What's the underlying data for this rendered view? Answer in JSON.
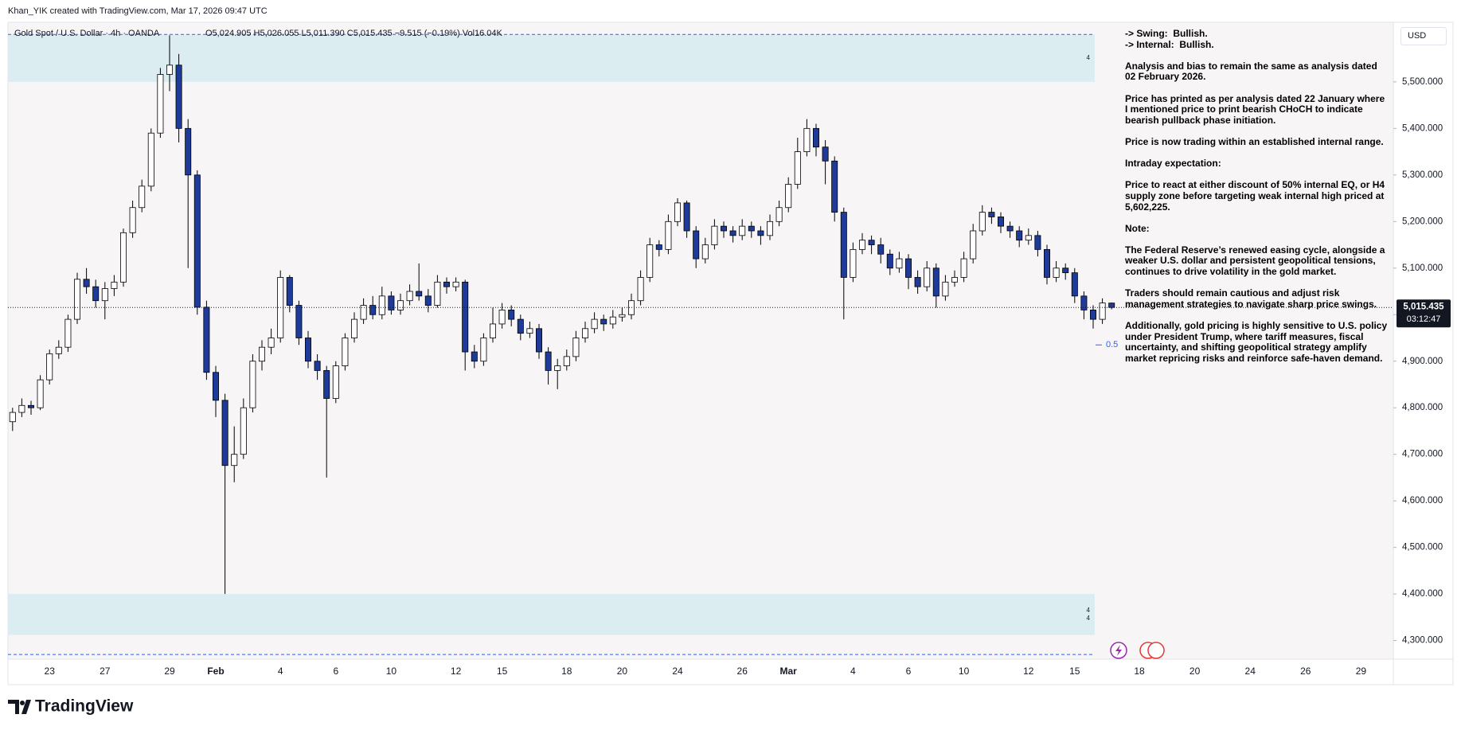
{
  "header": "Khan_YIK created with TradingView.com, Mar 17, 2026 09:47 UTC",
  "footer": "TradingView",
  "currency_button": "USD",
  "notes": [
    [
      "-> Swing:  Bullish.",
      "-> Internal:  Bullish."
    ],
    [
      "Analysis and bias to remain the same as analysis dated 02 February 2026."
    ],
    [
      "Price has printed as per analysis dated 22 January where I mentioned price to print bearish CHoCH to indicate bearish pullback phase initiation."
    ],
    [
      "Price is now trading within an established internal range."
    ],
    [
      "Intraday expectation:"
    ],
    [
      "Price to react at either discount of 50% internal EQ, or H4 supply zone before targeting weak internal high priced at 5,602,225."
    ],
    [
      "Note:"
    ],
    [
      "The Federal Reserve’s renewed easing cycle, alongside a weaker U.S. dollar and persistent geopolitical tensions, continues to drive volatility in the gold market."
    ],
    [
      "Traders should remain cautious and adjust risk management strategies to navigate sharp price swings."
    ],
    [
      "Additionally, gold pricing is highly sensitive to U.S. policy under President Trump, where tariff measures, fiscal uncertainty, and shifting geopolitical strategy amplify market repricing risks and reinforce safe-haven demand."
    ]
  ],
  "chart_data": {
    "type": "candlestick",
    "title": "Gold Spot / U.S. Dollar · 4h · OANDA",
    "ohlc_text": "O5,024.905  H5,026.055  L5,011.390  C5,015.435  −9.515 (−0.19%)  Vol16.04K",
    "up_color": "#ffffff",
    "down_color": "#1f3b99",
    "wick_color": "#000000",
    "grid": false,
    "ylim": [
      4260,
      5628
    ],
    "yticks": [
      {
        "value": 4300,
        "label": "4,300.000"
      },
      {
        "value": 4400,
        "label": "4,400.000"
      },
      {
        "value": 4500,
        "label": "4,500.000"
      },
      {
        "value": 4600,
        "label": "4,600.000"
      },
      {
        "value": 4700,
        "label": "4,700.000"
      },
      {
        "value": 4800,
        "label": "4,800.000"
      },
      {
        "value": 4900,
        "label": "4,900.000"
      },
      {
        "value": 5000,
        "label": "5,000.000"
      },
      {
        "value": 5100,
        "label": "5,100.000"
      },
      {
        "value": 5200,
        "label": "5,200.000"
      },
      {
        "value": 5300,
        "label": "5,300.000"
      },
      {
        "value": 5400,
        "label": "5,400.000"
      },
      {
        "value": 5500,
        "label": "5,500.000"
      }
    ],
    "last_price": {
      "value": 5015.435,
      "label": "5,015.435"
    },
    "countdown": "03:12:47",
    "zones": [
      {
        "top": 5602,
        "bottom": 5500,
        "color": "#dcedf2",
        "labels": [
          "4"
        ]
      },
      {
        "top": 4400,
        "bottom": 4312,
        "color": "#dcedf2",
        "labels": [
          "4",
          "4"
        ]
      }
    ],
    "levels": [
      5602,
      4270
    ],
    "eq": {
      "value": 4935,
      "label": "0.5"
    },
    "categories": [
      null,
      null,
      null,
      null,
      "23",
      null,
      null,
      null,
      null,
      null,
      "27",
      null,
      null,
      null,
      null,
      null,
      null,
      "29",
      null,
      null,
      null,
      null,
      "Feb",
      null,
      null,
      null,
      null,
      null,
      null,
      "4",
      null,
      null,
      null,
      null,
      null,
      "6",
      null,
      null,
      null,
      null,
      null,
      "10",
      null,
      null,
      null,
      null,
      null,
      null,
      "12",
      null,
      null,
      null,
      null,
      "15",
      null,
      null,
      null,
      null,
      null,
      null,
      "18",
      null,
      null,
      null,
      null,
      null,
      "20",
      null,
      null,
      null,
      null,
      null,
      "24",
      null,
      null,
      null,
      null,
      null,
      null,
      "26",
      null,
      null,
      null,
      null,
      "Mar",
      null,
      null,
      null,
      null,
      null,
      null,
      "4",
      null,
      null,
      null,
      null,
      null,
      "6",
      null,
      null,
      null,
      null,
      null,
      "10",
      null,
      null,
      null,
      null,
      null,
      null,
      "12",
      null,
      null,
      null,
      null,
      "15",
      null,
      null,
      null,
      null,
      null,
      null,
      "18",
      null,
      null,
      null,
      null,
      null,
      "20",
      null,
      null,
      null,
      null,
      null,
      "24",
      null,
      null,
      null,
      null,
      null,
      "26",
      null,
      null,
      null,
      null,
      null,
      "29",
      null,
      null,
      null
    ],
    "open": [
      4770,
      4790,
      4805,
      4800,
      4860,
      4916,
      4930,
      4990,
      5076,
      5060,
      5030,
      5056,
      5070,
      5176,
      5230,
      5276,
      5390,
      5516,
      5536,
      5400,
      5300,
      5016,
      4876,
      4816,
      4676,
      4700,
      4800,
      4900,
      4930,
      4950,
      5080,
      5020,
      4950,
      4900,
      4880,
      4820,
      4890,
      4950,
      4990,
      5020,
      5000,
      5040,
      5010,
      5030,
      5050,
      5040,
      5020,
      5070,
      5060,
      5070,
      4920,
      4900,
      4950,
      4980,
      5010,
      4990,
      4960,
      4970,
      4920,
      4880,
      4890,
      4910,
      4950,
      4970,
      4990,
      4980,
      4995,
      5000,
      5030,
      5080,
      5150,
      5140,
      5200,
      5240,
      5180,
      5120,
      5150,
      5190,
      5180,
      5170,
      5190,
      5180,
      5170,
      5200,
      5230,
      5280,
      5350,
      5400,
      5360,
      5330,
      5220,
      5080,
      5140,
      5160,
      5150,
      5130,
      5100,
      5120,
      5080,
      5060,
      5100,
      5040,
      5070,
      5080,
      5120,
      5180,
      5220,
      5210,
      5190,
      5180,
      5160,
      5170,
      5140,
      5080,
      5100,
      5090,
      5040,
      5010,
      4990,
      5024.905,
      null,
      null,
      null,
      null,
      null,
      null,
      null,
      null,
      null,
      null,
      null,
      null,
      null,
      null,
      null,
      null,
      null,
      null,
      null,
      null,
      null,
      null,
      null,
      null,
      null,
      null,
      null,
      null,
      null,
      null
    ],
    "high": [
      4800,
      4820,
      4815,
      4870,
      4925,
      4945,
      5000,
      5090,
      5100,
      5075,
      5070,
      5085,
      5185,
      5245,
      5290,
      5400,
      5530,
      5600,
      5560,
      5420,
      5310,
      5030,
      4890,
      4830,
      4760,
      4820,
      4915,
      4945,
      4970,
      5095,
      5085,
      5030,
      4965,
      4915,
      4890,
      4900,
      4960,
      5005,
      5035,
      5040,
      5060,
      5050,
      5045,
      5065,
      5110,
      5055,
      5085,
      5080,
      5080,
      5075,
      4935,
      4960,
      5015,
      5025,
      5020,
      5000,
      4985,
      4980,
      4930,
      4905,
      4925,
      4965,
      4985,
      5005,
      5000,
      5010,
      5015,
      5045,
      5095,
      5165,
      5160,
      5215,
      5250,
      5245,
      5190,
      5165,
      5205,
      5200,
      5190,
      5205,
      5200,
      5190,
      5215,
      5245,
      5295,
      5380,
      5420,
      5410,
      5375,
      5340,
      5230,
      5155,
      5175,
      5170,
      5165,
      5140,
      5135,
      5130,
      5095,
      5115,
      5110,
      5085,
      5095,
      5135,
      5195,
      5235,
      5230,
      5220,
      5200,
      5190,
      5185,
      5180,
      5150,
      5115,
      5110,
      5100,
      5050,
      5020,
      5035,
      5026.055,
      null,
      null,
      null,
      null,
      null,
      null,
      null,
      null,
      null,
      null,
      null,
      null,
      null,
      null,
      null,
      null,
      null,
      null,
      null,
      null,
      null,
      null,
      null,
      null,
      null,
      null,
      null,
      null,
      null,
      null
    ],
    "low": [
      4750,
      4780,
      4785,
      4795,
      4850,
      4905,
      4920,
      4980,
      5045,
      5015,
      4990,
      5040,
      5060,
      5165,
      5220,
      5265,
      5380,
      5480,
      5370,
      5100,
      5000,
      4860,
      4780,
      4400,
      4640,
      4690,
      4790,
      4880,
      4915,
      4940,
      5005,
      4935,
      4885,
      4860,
      4650,
      4810,
      4880,
      4940,
      4980,
      4990,
      4990,
      5000,
      5000,
      5020,
      5030,
      5005,
      5015,
      5045,
      5050,
      4880,
      4885,
      4890,
      4940,
      4970,
      4975,
      4945,
      4950,
      4905,
      4850,
      4840,
      4880,
      4900,
      4940,
      4960,
      4965,
      4970,
      4985,
      4990,
      5020,
      5070,
      5125,
      5130,
      5190,
      5165,
      5100,
      5110,
      5140,
      5165,
      5155,
      5160,
      5165,
      5150,
      5160,
      5190,
      5220,
      5270,
      5340,
      5340,
      5280,
      5200,
      4990,
      5070,
      5130,
      5130,
      5110,
      5085,
      5090,
      5055,
      5045,
      5050,
      5015,
      5030,
      5060,
      5070,
      5110,
      5170,
      5195,
      5175,
      5165,
      5145,
      5150,
      5125,
      5065,
      5070,
      5075,
      5025,
      4990,
      4970,
      4980,
      5011.39,
      null,
      null,
      null,
      null,
      null,
      null,
      null,
      null,
      null,
      null,
      null,
      null,
      null,
      null,
      null,
      null,
      null,
      null,
      null,
      null,
      null,
      null,
      null,
      null,
      null,
      null,
      null,
      null,
      null,
      null
    ],
    "close": [
      4790,
      4805,
      4800,
      4860,
      4916,
      4930,
      4990,
      5076,
      5060,
      5030,
      5056,
      5070,
      5176,
      5230,
      5276,
      5390,
      5516,
      5536,
      5400,
      5300,
      5016,
      4876,
      4816,
      4676,
      4700,
      4800,
      4900,
      4930,
      4950,
      5080,
      5020,
      4950,
      4900,
      4880,
      4820,
      4890,
      4950,
      4990,
      5020,
      5000,
      5040,
      5010,
      5030,
      5050,
      5040,
      5020,
      5070,
      5060,
      5070,
      4920,
      4900,
      4950,
      4980,
      5010,
      4990,
      4960,
      4970,
      4920,
      4880,
      4890,
      4910,
      4950,
      4970,
      4990,
      4980,
      4995,
      5000,
      5030,
      5080,
      5150,
      5140,
      5200,
      5240,
      5180,
      5120,
      5150,
      5190,
      5180,
      5170,
      5190,
      5180,
      5170,
      5200,
      5230,
      5280,
      5350,
      5400,
      5360,
      5330,
      5220,
      5080,
      5140,
      5160,
      5150,
      5130,
      5100,
      5120,
      5080,
      5060,
      5100,
      5040,
      5070,
      5080,
      5120,
      5180,
      5220,
      5210,
      5190,
      5180,
      5160,
      5170,
      5140,
      5080,
      5100,
      5090,
      5040,
      5010,
      4990,
      5025,
      5015.435,
      null,
      null,
      null,
      null,
      null,
      null,
      null,
      null,
      null,
      null,
      null,
      null,
      null,
      null,
      null,
      null,
      null,
      null,
      null,
      null,
      null,
      null,
      null,
      null,
      null,
      null,
      null,
      null,
      null,
      null
    ]
  }
}
